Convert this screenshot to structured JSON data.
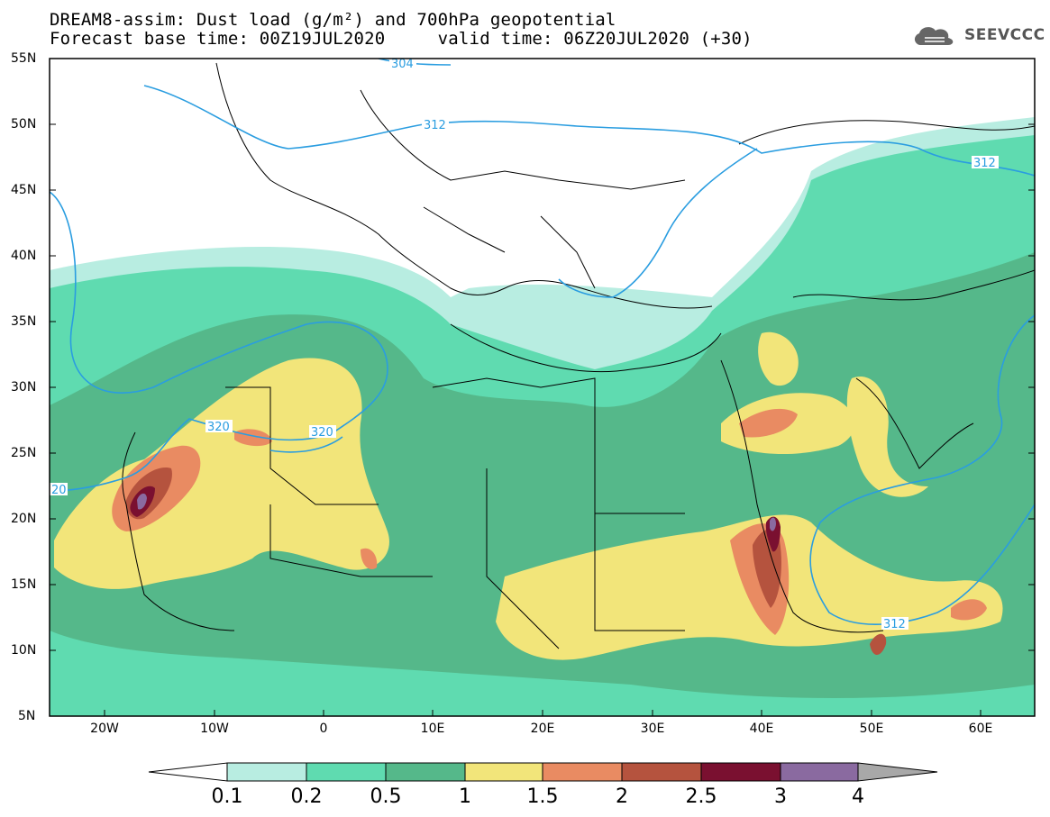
{
  "header": {
    "title_line1": "DREAM8-assim: Dust load (g/m²) and 700hPa geopotential",
    "title_line2": "Forecast base time: 00Z19JUL2020     valid time: 06Z20JUL2020 (+30)",
    "logo_text": "SEEVCCC"
  },
  "axes": {
    "lat_labels": [
      "55N",
      "50N",
      "45N",
      "40N",
      "35N",
      "30N",
      "25N",
      "20N",
      "15N",
      "10N",
      "5N"
    ],
    "lon_labels": [
      "20W",
      "10W",
      "0",
      "10E",
      "20E",
      "30E",
      "40E",
      "50E",
      "60E"
    ]
  },
  "contour_labels": {
    "c304": "304",
    "c312a": "312",
    "c312b": "312",
    "c312c": "312",
    "c320a": "320",
    "c320b": "320",
    "c20": "20"
  },
  "colorbar": {
    "labels": [
      "0.1",
      "0.2",
      "0.5",
      "1",
      "1.5",
      "2",
      "2.5",
      "3",
      "4"
    ],
    "colors": [
      "#ffffff",
      "#b8ede1",
      "#5fdbb0",
      "#55b88a",
      "#f2e57a",
      "#e98b62",
      "#b5533e",
      "#7a1030",
      "#8a6aa0",
      "#a8a8a8"
    ]
  },
  "colors": {
    "geopotential": "#2a9de0",
    "dust_01": "#b8ede1",
    "dust_02": "#5fdbb0",
    "dust_05": "#55b88a",
    "dust_1": "#f2e57a",
    "dust_15": "#e98b62",
    "dust_2": "#b5533e",
    "dust_25": "#7a1030",
    "dust_3": "#8a6aa0"
  }
}
